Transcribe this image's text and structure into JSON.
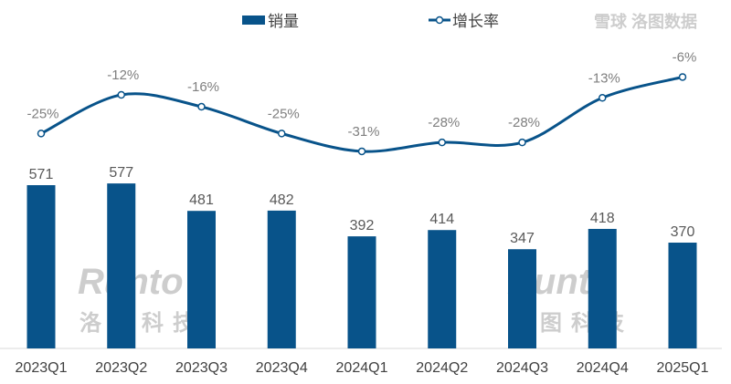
{
  "chart_data": {
    "type": "bar+line",
    "categories": [
      "2023Q1",
      "2023Q2",
      "2023Q3",
      "2023Q4",
      "2024Q1",
      "2024Q2",
      "2024Q3",
      "2024Q4",
      "2025Q1"
    ],
    "series": [
      {
        "name": "销量",
        "type": "bar",
        "values": [
          571,
          577,
          481,
          482,
          392,
          414,
          347,
          418,
          370
        ],
        "color": "#08538a"
      },
      {
        "name": "增长率",
        "type": "line",
        "values": [
          -25,
          -12,
          -16,
          -25,
          -31,
          -28,
          -28,
          -13,
          -6
        ],
        "unit": "%",
        "color": "#08538a"
      }
    ],
    "legend_position": "top",
    "grid": false
  },
  "watermarks": {
    "brand": "Runto",
    "brand_cn": "洛图科技",
    "source": "雪球  洛图数据"
  }
}
